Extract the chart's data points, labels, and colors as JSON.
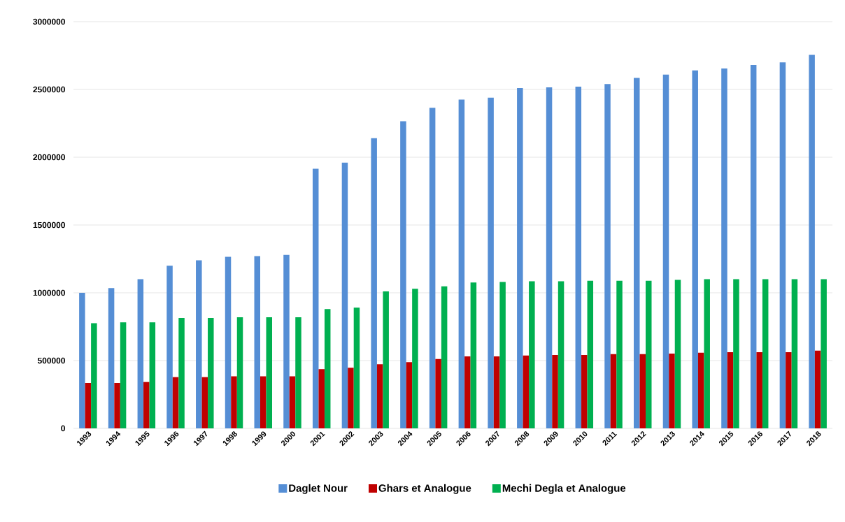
{
  "chart_data": {
    "type": "bar",
    "categories": [
      "1993",
      "1994",
      "1995",
      "1996",
      "1997",
      "1998",
      "1999",
      "2000",
      "2001",
      "2002",
      "2003",
      "2004",
      "2005",
      "2006",
      "2007",
      "2008",
      "2009",
      "2010",
      "2011",
      "2012",
      "2013",
      "2014",
      "2015",
      "2016",
      "2017",
      "2018"
    ],
    "series": [
      {
        "name": "Daglet Nour",
        "color": "#558ed5",
        "values": [
          1000000,
          1035000,
          1100000,
          1200000,
          1240000,
          1265000,
          1270000,
          1280000,
          1915000,
          1960000,
          2140000,
          2265000,
          2365000,
          2425000,
          2440000,
          2510000,
          2515000,
          2520000,
          2540000,
          2585000,
          2610000,
          2640000,
          2655000,
          2680000,
          2700000,
          2755000
        ]
      },
      {
        "name": "Ghars et Analogue",
        "color": "#c00000",
        "values": [
          335000,
          335000,
          342000,
          378000,
          378000,
          384000,
          384000,
          384000,
          437000,
          447000,
          473000,
          489000,
          512000,
          531000,
          531000,
          537000,
          541000,
          541000,
          548000,
          548000,
          552000,
          558000,
          562000,
          562000,
          562000,
          573000
        ]
      },
      {
        "name": "Mechi Degla et Analogue",
        "color": "#00b050",
        "values": [
          776000,
          782000,
          782000,
          814000,
          814000,
          819000,
          819000,
          819000,
          880000,
          890000,
          1010000,
          1030000,
          1048000,
          1076000,
          1080000,
          1085000,
          1085000,
          1089000,
          1089000,
          1089000,
          1095000,
          1100000,
          1100000,
          1100000,
          1100000,
          1100000
        ]
      }
    ],
    "ylim": [
      0,
      3000000
    ],
    "yticks": [
      0,
      500000,
      1000000,
      1500000,
      2000000,
      2500000,
      3000000
    ],
    "grid": "y",
    "legend": "bottom"
  }
}
